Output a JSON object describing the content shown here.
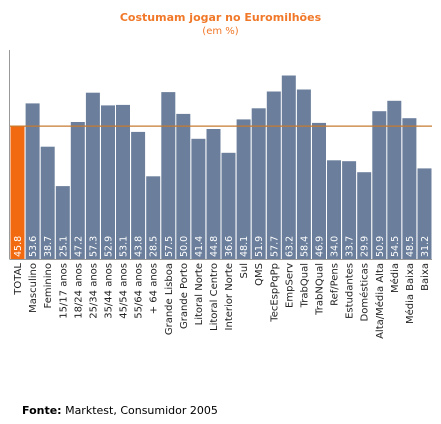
{
  "chart_data": {
    "type": "bar",
    "title": "Costumam jogar no Euromilhões",
    "subtitle": "(em %)",
    "categories": [
      "TOTAL",
      "Masculino",
      "Feminino",
      "15/17 anos",
      "18/24 anos",
      "25/34 anos",
      "35/44 anos",
      "45/54 anos",
      "55/64 anos",
      "+ 64 anos",
      "Grande Lisboa",
      "Grande Porto",
      "Litoral Norte",
      "Litoral Centro",
      "Interior Norte",
      "Sul",
      "QMS",
      "TecEspPqPp",
      "EmpServ",
      "TrabQual",
      "TrabNQual",
      "Ref/Pens",
      "Estudantes",
      "Domésticas",
      "Alta/Média Alta",
      "Média",
      "Média Baixa",
      "Baixa"
    ],
    "values": [
      45.8,
      53.6,
      38.7,
      25.1,
      47.2,
      57.3,
      52.9,
      53.1,
      43.8,
      28.5,
      57.5,
      50.0,
      41.4,
      44.8,
      36.6,
      48.1,
      51.9,
      57.7,
      63.2,
      58.4,
      46.9,
      34.0,
      33.7,
      29.9,
      50.9,
      54.5,
      48.5,
      31.2
    ],
    "value_labels": [
      "45.8",
      "53.6",
      "38.7",
      "25.1",
      "47.2",
      "57.3",
      "52.9",
      "53.1",
      "43.8",
      "28.5",
      "57.5",
      "50.0",
      "41.4",
      "44.8",
      "36.6",
      "48.1",
      "51.9",
      "57.7",
      "63.2",
      "58.4",
      "46.9",
      "34.0",
      "33.7",
      "29.9",
      "50.9",
      "54.5",
      "48.5",
      "31.2"
    ],
    "highlight_index": 0,
    "reference_line": 45.8,
    "ylim": [
      0,
      72
    ],
    "grid": false,
    "colors": {
      "bar": "#6b7f9c",
      "highlight": "#f26a10",
      "reference_line": "#c77a30",
      "axis": "#999999",
      "title": "#f07828"
    }
  },
  "source": {
    "label": "Fonte:",
    "text": "Marktest, Consumidor 2005"
  }
}
